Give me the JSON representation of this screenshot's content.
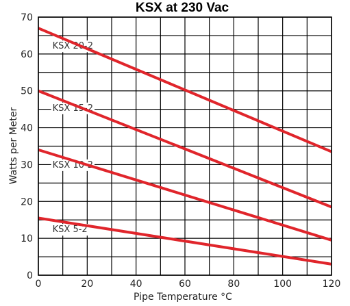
{
  "chart_data": {
    "type": "line",
    "title": "KSX at 230 Vac",
    "xlabel": "Pipe Temperature °C",
    "ylabel": "Watts per Meter",
    "xlim": [
      0,
      120
    ],
    "ylim": [
      0,
      70
    ],
    "x_ticks": [
      0,
      20,
      40,
      60,
      80,
      100,
      120
    ],
    "y_ticks": [
      0,
      10,
      20,
      30,
      40,
      50,
      60,
      70
    ],
    "grid": true,
    "line_color": "#e0252b",
    "series": [
      {
        "name": "KSX 20-2",
        "x": [
          0,
          120
        ],
        "y": [
          67,
          33.5
        ]
      },
      {
        "name": "KSX 15-2",
        "x": [
          0,
          120
        ],
        "y": [
          50,
          18.5
        ]
      },
      {
        "name": "KSX 10-2",
        "x": [
          0,
          120
        ],
        "y": [
          34,
          9.5
        ]
      },
      {
        "name": "KSX 5-2",
        "x": [
          0,
          120
        ],
        "y": [
          15.5,
          3
        ]
      }
    ]
  }
}
